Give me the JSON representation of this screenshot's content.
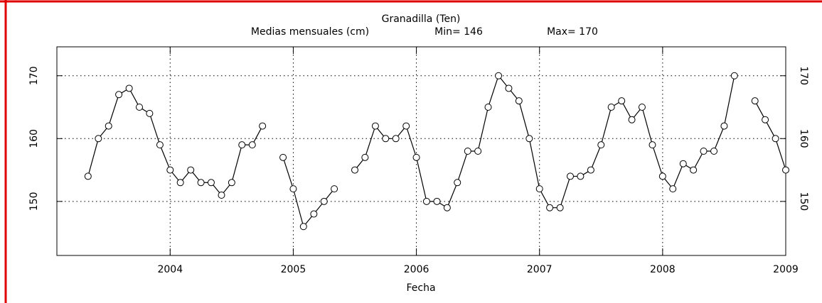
{
  "chart_data": {
    "type": "line",
    "title": "Granadilla (Ten)",
    "subtitle": "Medias mensuales (cm)",
    "annotations": [
      "Min= 146",
      "Max= 170"
    ],
    "x_label": "Fecha",
    "x": [
      2003.333,
      2003.417,
      2003.5,
      2003.583,
      2003.667,
      2003.75,
      2003.833,
      2003.917,
      2004,
      2004.083,
      2004.167,
      2004.25,
      2004.333,
      2004.417,
      2004.5,
      2004.583,
      2004.667,
      2004.75,
      2004.833,
      2004.917,
      2005,
      2005.083,
      2005.167,
      2005.25,
      2005.333,
      2005.417,
      2005.5,
      2005.583,
      2005.667,
      2005.75,
      2005.833,
      2005.917,
      2006,
      2006.083,
      2006.167,
      2006.25,
      2006.333,
      2006.417,
      2006.5,
      2006.583,
      2006.667,
      2006.75,
      2006.833,
      2006.917,
      2007,
      2007.083,
      2007.167,
      2007.25,
      2007.333,
      2007.417,
      2007.5,
      2007.583,
      2007.667,
      2007.75,
      2007.833,
      2007.917,
      2008,
      2008.083,
      2008.167,
      2008.25,
      2008.333,
      2008.417,
      2008.5,
      2008.583,
      2008.667,
      2008.75,
      2008.833,
      2008.917,
      2009
    ],
    "series": [
      {
        "color": "#000000",
        "values": [
          154,
          160,
          162,
          167,
          168,
          165,
          164,
          159,
          155,
          153,
          155,
          153,
          153,
          151,
          153,
          159,
          159,
          162,
          null,
          157,
          152,
          146,
          148,
          150,
          152,
          null,
          155,
          157,
          162,
          160,
          160,
          162,
          157,
          150,
          150,
          149,
          153,
          158,
          158,
          165,
          170,
          168,
          166,
          160,
          152,
          149,
          149,
          154,
          154,
          155,
          159,
          165,
          166,
          163,
          165,
          159,
          154,
          152,
          156,
          155,
          158,
          158,
          162,
          170,
          null,
          166,
          163,
          160,
          155
        ]
      }
    ],
    "xlim": [
      2003.08,
      2009
    ],
    "xticks": [
      2004,
      2005,
      2006,
      2007,
      2008,
      2009
    ],
    "ylim": [
      141.4,
      174.6
    ],
    "yticks": [
      150,
      160,
      170
    ],
    "grid": true
  }
}
